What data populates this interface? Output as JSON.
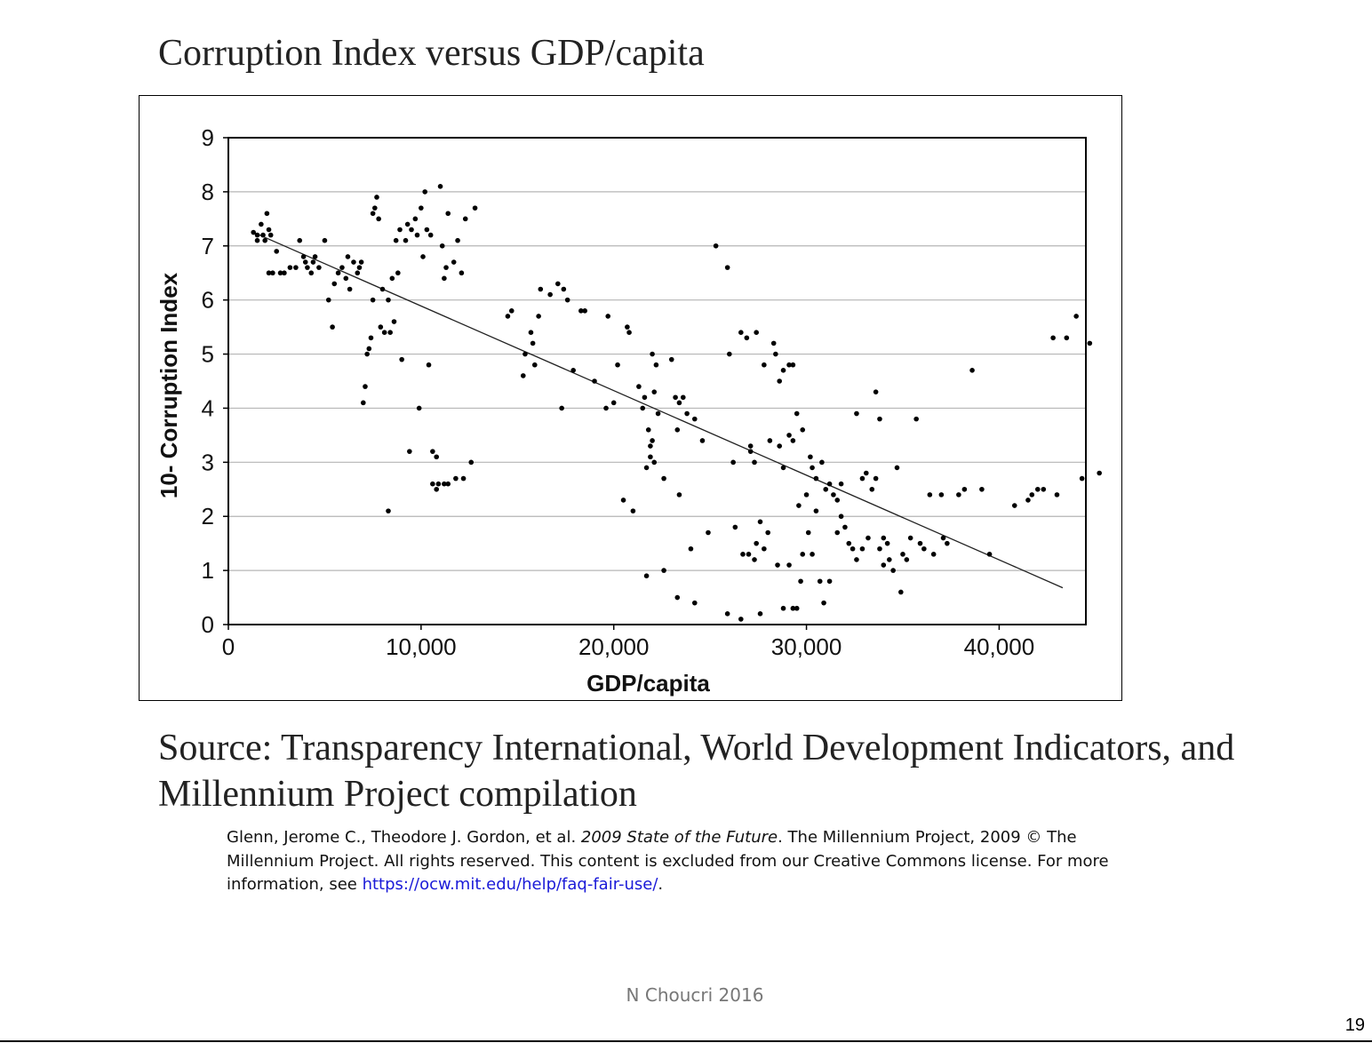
{
  "slide": {
    "title": "Corruption Index versus GDP/capita",
    "source": "Source: Transparency International, World Development Indicators, and Millennium Project compilation",
    "citation": {
      "part1": "Glenn, Jerome C., Theodore J. Gordon, et al. ",
      "italic": "2009 State of the Future",
      "part2": ". The Millennium Project, 2009 © The Millennium Project. All rights reserved. This content is excluded from our Creative Commons license. For more information, see ",
      "link": "https://ocw.mit.edu/help/faq-fair-use/",
      "end": "."
    },
    "footer": "N Choucri 2016",
    "page_number": "19"
  },
  "chart_data": {
    "type": "scatter",
    "xlabel": "GDP/capita",
    "ylabel": "10- Corruption Index",
    "xlim": [
      0,
      44500
    ],
    "ylim": [
      0,
      9
    ],
    "x_ticks": [
      0,
      10000,
      20000,
      30000,
      40000
    ],
    "x_tick_labels": [
      "0",
      "10,000",
      "20,000",
      "30,000",
      "40,000"
    ],
    "y_ticks": [
      0,
      1,
      2,
      3,
      4,
      5,
      6,
      7,
      8,
      9
    ],
    "y_tick_labels": [
      "0",
      "1",
      "2",
      "3",
      "4",
      "5",
      "6",
      "7",
      "8",
      "9"
    ],
    "grid": "horizontal",
    "trend_line": {
      "x": [
        1300,
        43300
      ],
      "y": [
        7.25,
        0.68
      ]
    },
    "points": [
      [
        1300,
        7.25
      ],
      [
        1500,
        7.2
      ],
      [
        1700,
        7.4
      ],
      [
        1800,
        7.2
      ],
      [
        2000,
        7.6
      ],
      [
        1500,
        7.1
      ],
      [
        1900,
        7.1
      ],
      [
        2200,
        7.2
      ],
      [
        2100,
        7.3
      ],
      [
        2100,
        6.5
      ],
      [
        2300,
        6.5
      ],
      [
        2500,
        6.9
      ],
      [
        2700,
        6.5
      ],
      [
        2900,
        6.5
      ],
      [
        3200,
        6.6
      ],
      [
        3500,
        6.6
      ],
      [
        3700,
        7.1
      ],
      [
        3900,
        6.8
      ],
      [
        4000,
        6.7
      ],
      [
        4100,
        6.6
      ],
      [
        4300,
        6.5
      ],
      [
        4400,
        6.7
      ],
      [
        4500,
        6.8
      ],
      [
        4700,
        6.6
      ],
      [
        5000,
        7.1
      ],
      [
        5200,
        6.0
      ],
      [
        5400,
        5.5
      ],
      [
        5500,
        6.3
      ],
      [
        5700,
        6.5
      ],
      [
        5900,
        6.6
      ],
      [
        6100,
        6.4
      ],
      [
        6200,
        6.8
      ],
      [
        6300,
        6.2
      ],
      [
        6500,
        6.7
      ],
      [
        6700,
        6.5
      ],
      [
        6800,
        6.6
      ],
      [
        6900,
        6.7
      ],
      [
        7000,
        4.1
      ],
      [
        7100,
        4.4
      ],
      [
        7200,
        5.0
      ],
      [
        7300,
        5.1
      ],
      [
        7400,
        5.3
      ],
      [
        7500,
        6.0
      ],
      [
        7500,
        7.6
      ],
      [
        7600,
        7.7
      ],
      [
        7700,
        7.9
      ],
      [
        7800,
        7.5
      ],
      [
        7900,
        5.5
      ],
      [
        8000,
        6.2
      ],
      [
        8100,
        5.4
      ],
      [
        8300,
        6.0
      ],
      [
        8400,
        5.4
      ],
      [
        8500,
        6.4
      ],
      [
        8600,
        5.6
      ],
      [
        8300,
        2.1
      ],
      [
        8700,
        7.1
      ],
      [
        8800,
        6.5
      ],
      [
        8900,
        7.3
      ],
      [
        9000,
        4.9
      ],
      [
        9200,
        7.1
      ],
      [
        9300,
        7.4
      ],
      [
        9400,
        3.2
      ],
      [
        9500,
        7.3
      ],
      [
        9700,
        7.5
      ],
      [
        9800,
        7.2
      ],
      [
        9900,
        4.0
      ],
      [
        10000,
        7.7
      ],
      [
        10100,
        6.8
      ],
      [
        10200,
        8.0
      ],
      [
        10300,
        7.3
      ],
      [
        10400,
        4.8
      ],
      [
        10500,
        7.2
      ],
      [
        10600,
        3.2
      ],
      [
        10800,
        3.1
      ],
      [
        10600,
        2.6
      ],
      [
        10800,
        2.5
      ],
      [
        10900,
        2.6
      ],
      [
        11200,
        2.6
      ],
      [
        11400,
        2.6
      ],
      [
        11800,
        2.7
      ],
      [
        12200,
        2.7
      ],
      [
        12600,
        3.0
      ],
      [
        11000,
        8.1
      ],
      [
        11100,
        7.0
      ],
      [
        11200,
        6.4
      ],
      [
        11300,
        6.6
      ],
      [
        11400,
        7.6
      ],
      [
        11700,
        6.7
      ],
      [
        11900,
        7.1
      ],
      [
        12100,
        6.5
      ],
      [
        12300,
        7.5
      ],
      [
        12800,
        7.7
      ],
      [
        14500,
        5.7
      ],
      [
        14700,
        5.8
      ],
      [
        15300,
        4.6
      ],
      [
        15400,
        5.0
      ],
      [
        15700,
        5.4
      ],
      [
        15800,
        5.2
      ],
      [
        15900,
        4.8
      ],
      [
        16100,
        5.7
      ],
      [
        16200,
        6.2
      ],
      [
        16700,
        6.1
      ],
      [
        17100,
        6.3
      ],
      [
        17400,
        6.2
      ],
      [
        17600,
        6.0
      ],
      [
        17300,
        4.0
      ],
      [
        17900,
        4.7
      ],
      [
        18300,
        5.8
      ],
      [
        18500,
        5.8
      ],
      [
        19000,
        4.5
      ],
      [
        19600,
        4.0
      ],
      [
        19700,
        5.7
      ],
      [
        20000,
        4.1
      ],
      [
        20200,
        4.8
      ],
      [
        20700,
        5.5
      ],
      [
        20800,
        5.4
      ],
      [
        20500,
        2.3
      ],
      [
        21000,
        2.1
      ],
      [
        21300,
        4.4
      ],
      [
        21500,
        4.0
      ],
      [
        21600,
        4.2
      ],
      [
        21800,
        3.6
      ],
      [
        21900,
        3.3
      ],
      [
        22000,
        5.0
      ],
      [
        22100,
        4.3
      ],
      [
        22200,
        4.8
      ],
      [
        22300,
        3.9
      ],
      [
        21700,
        2.9
      ],
      [
        21900,
        3.1
      ],
      [
        22000,
        3.4
      ],
      [
        22100,
        3.0
      ],
      [
        22600,
        2.7
      ],
      [
        22600,
        1.0
      ],
      [
        21700,
        0.9
      ],
      [
        23000,
        4.9
      ],
      [
        23200,
        4.2
      ],
      [
        23300,
        3.6
      ],
      [
        23400,
        4.1
      ],
      [
        23600,
        4.2
      ],
      [
        23800,
        3.9
      ],
      [
        23400,
        2.4
      ],
      [
        23300,
        0.5
      ],
      [
        24200,
        3.8
      ],
      [
        24600,
        3.4
      ],
      [
        24200,
        0.4
      ],
      [
        24000,
        1.4
      ],
      [
        24900,
        1.7
      ],
      [
        25300,
        7.0
      ],
      [
        25900,
        6.6
      ],
      [
        25900,
        0.2
      ],
      [
        26000,
        5.0
      ],
      [
        26200,
        3.0
      ],
      [
        26600,
        5.4
      ],
      [
        26900,
        5.3
      ],
      [
        27100,
        3.2
      ],
      [
        27300,
        3.0
      ],
      [
        27400,
        5.4
      ],
      [
        26300,
        1.8
      ],
      [
        26700,
        1.3
      ],
      [
        27000,
        1.3
      ],
      [
        27100,
        3.3
      ],
      [
        27300,
        1.2
      ],
      [
        27400,
        1.5
      ],
      [
        27600,
        1.9
      ],
      [
        27800,
        1.4
      ],
      [
        28000,
        1.7
      ],
      [
        26600,
        0.1
      ],
      [
        27600,
        0.2
      ],
      [
        28500,
        1.1
      ],
      [
        28800,
        0.3
      ],
      [
        29100,
        1.1
      ],
      [
        29300,
        0.3
      ],
      [
        29500,
        0.3
      ],
      [
        29700,
        0.8
      ],
      [
        27800,
        4.8
      ],
      [
        28100,
        3.4
      ],
      [
        28300,
        5.2
      ],
      [
        28400,
        5.0
      ],
      [
        28600,
        4.5
      ],
      [
        28800,
        4.7
      ],
      [
        29100,
        4.8
      ],
      [
        29300,
        4.8
      ],
      [
        28600,
        3.3
      ],
      [
        28800,
        2.9
      ],
      [
        29100,
        3.5
      ],
      [
        29300,
        3.4
      ],
      [
        29500,
        3.9
      ],
      [
        29800,
        3.6
      ],
      [
        30000,
        2.4
      ],
      [
        30200,
        3.1
      ],
      [
        29600,
        2.2
      ],
      [
        29800,
        1.3
      ],
      [
        30100,
        1.7
      ],
      [
        30300,
        1.3
      ],
      [
        30500,
        2.1
      ],
      [
        30700,
        0.8
      ],
      [
        30900,
        0.4
      ],
      [
        31200,
        0.8
      ],
      [
        30300,
        2.9
      ],
      [
        30500,
        2.7
      ],
      [
        30800,
        3.0
      ],
      [
        31000,
        2.5
      ],
      [
        31200,
        2.6
      ],
      [
        31400,
        2.4
      ],
      [
        31600,
        2.3
      ],
      [
        31800,
        2.6
      ],
      [
        31600,
        1.7
      ],
      [
        31800,
        2.0
      ],
      [
        32000,
        1.8
      ],
      [
        32200,
        1.5
      ],
      [
        32400,
        1.4
      ],
      [
        32600,
        1.2
      ],
      [
        32900,
        1.4
      ],
      [
        33200,
        1.6
      ],
      [
        32600,
        3.9
      ],
      [
        32900,
        2.7
      ],
      [
        33100,
        2.8
      ],
      [
        33400,
        2.5
      ],
      [
        33600,
        2.7
      ],
      [
        33800,
        1.4
      ],
      [
        34000,
        1.6
      ],
      [
        34200,
        1.5
      ],
      [
        33600,
        4.3
      ],
      [
        33800,
        3.8
      ],
      [
        34000,
        1.1
      ],
      [
        34300,
        1.2
      ],
      [
        34500,
        1.0
      ],
      [
        34700,
        2.9
      ],
      [
        34900,
        0.6
      ],
      [
        35000,
        1.3
      ],
      [
        35200,
        1.2
      ],
      [
        35400,
        1.6
      ],
      [
        35700,
        3.8
      ],
      [
        35900,
        1.5
      ],
      [
        36100,
        1.4
      ],
      [
        36400,
        2.4
      ],
      [
        36600,
        1.3
      ],
      [
        37000,
        2.4
      ],
      [
        37100,
        1.6
      ],
      [
        37300,
        1.5
      ],
      [
        37900,
        2.4
      ],
      [
        38200,
        2.5
      ],
      [
        38600,
        4.7
      ],
      [
        39100,
        2.5
      ],
      [
        39500,
        1.3
      ],
      [
        40800,
        2.2
      ],
      [
        41500,
        2.3
      ],
      [
        41700,
        2.4
      ],
      [
        42000,
        2.5
      ],
      [
        42300,
        2.5
      ],
      [
        42800,
        5.3
      ],
      [
        43000,
        2.4
      ],
      [
        43500,
        5.3
      ],
      [
        44000,
        5.7
      ],
      [
        44300,
        2.7
      ],
      [
        44700,
        5.2
      ],
      [
        45200,
        2.8
      ]
    ]
  }
}
